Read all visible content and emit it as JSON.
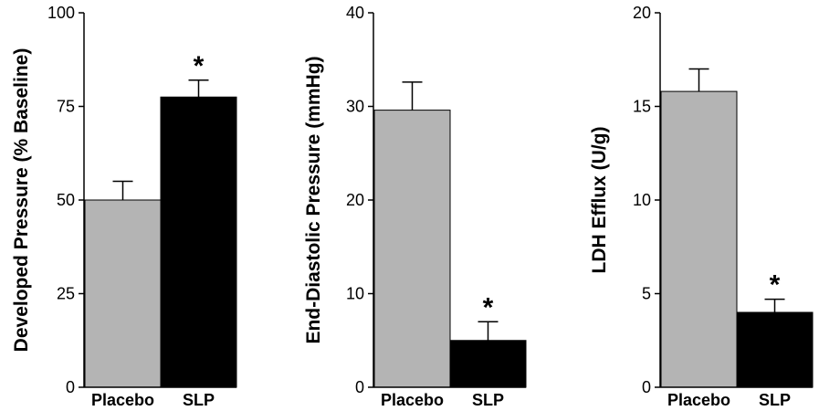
{
  "chart_data": [
    {
      "type": "bar",
      "title": "",
      "xlabel": "",
      "ylabel": "Developed Pressure (% Baseline)",
      "ylim": [
        0,
        100
      ],
      "yticks": [
        0,
        25,
        50,
        75,
        100
      ],
      "categories": [
        "Placebo",
        "SLP"
      ],
      "values": [
        50,
        77.5
      ],
      "errors": [
        5,
        4.5
      ],
      "annotations": [
        "",
        "*"
      ],
      "colors": [
        "#b4b4b4",
        "#000000"
      ]
    },
    {
      "type": "bar",
      "title": "",
      "xlabel": "",
      "ylabel": "End-Diastolic Pressure (mmHg)",
      "ylim": [
        0,
        40
      ],
      "yticks": [
        0,
        10,
        20,
        30,
        40
      ],
      "categories": [
        "Placebo",
        "SLP"
      ],
      "values": [
        29.6,
        5
      ],
      "errors": [
        3,
        2
      ],
      "annotations": [
        "",
        "*"
      ],
      "colors": [
        "#b4b4b4",
        "#000000"
      ]
    },
    {
      "type": "bar",
      "title": "",
      "xlabel": "",
      "ylabel": "LDH Efflux (U/g)",
      "ylim": [
        0,
        20
      ],
      "yticks": [
        0,
        5,
        10,
        15,
        20
      ],
      "categories": [
        "Placebo",
        "SLP"
      ],
      "values": [
        15.8,
        4
      ],
      "errors": [
        1.2,
        0.7
      ],
      "annotations": [
        "",
        "*"
      ],
      "colors": [
        "#b4b4b4",
        "#000000"
      ]
    }
  ]
}
